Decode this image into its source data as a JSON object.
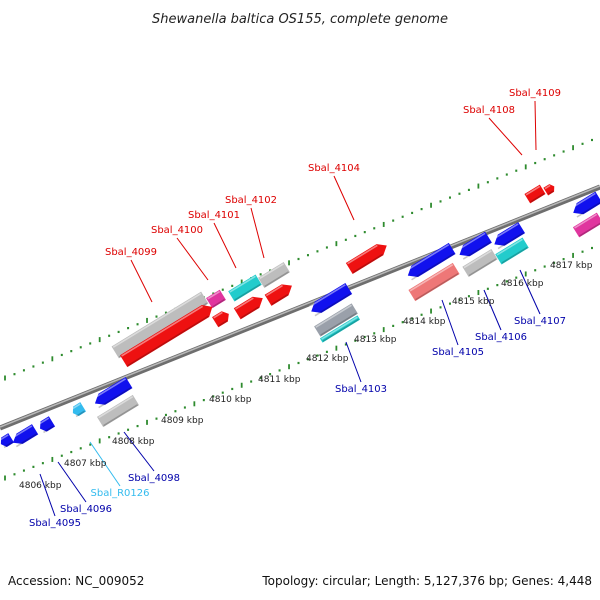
{
  "title": "Shewanella baltica OS155, complete genome",
  "footer": {
    "accession": "Accession: NC_009052",
    "summary": "Topology: circular; Length: 5,127,376 bp; Genes: 4,448"
  },
  "colors": {
    "backbone": "#8a8a8a",
    "tick": "#2e8b2e",
    "forward_label": "#dd0000",
    "reverse_label": "#0000aa",
    "rna_label": "#33bbee"
  },
  "ruler_labels": [
    "4806 kbp",
    "4807 kbp",
    "4808 kbp",
    "4809 kbp",
    "4810 kbp",
    "4811 kbp",
    "4812 kbp",
    "4813 kbp",
    "4814 kbp",
    "4815 kbp",
    "4816 kbp",
    "4817 kbp"
  ],
  "forward_labels": [
    "Sbal_4099",
    "Sbal_4100",
    "Sbal_4101",
    "Sbal_4102",
    "Sbal_4104",
    "Sbal_4108",
    "Sbal_4109"
  ],
  "reverse_labels": [
    "Sbal_4095",
    "Sbal_4096",
    "Sbal_R0126",
    "Sbal_4098",
    "Sbal_4103",
    "Sbal_4105",
    "Sbal_4106",
    "Sbal_4107"
  ]
}
